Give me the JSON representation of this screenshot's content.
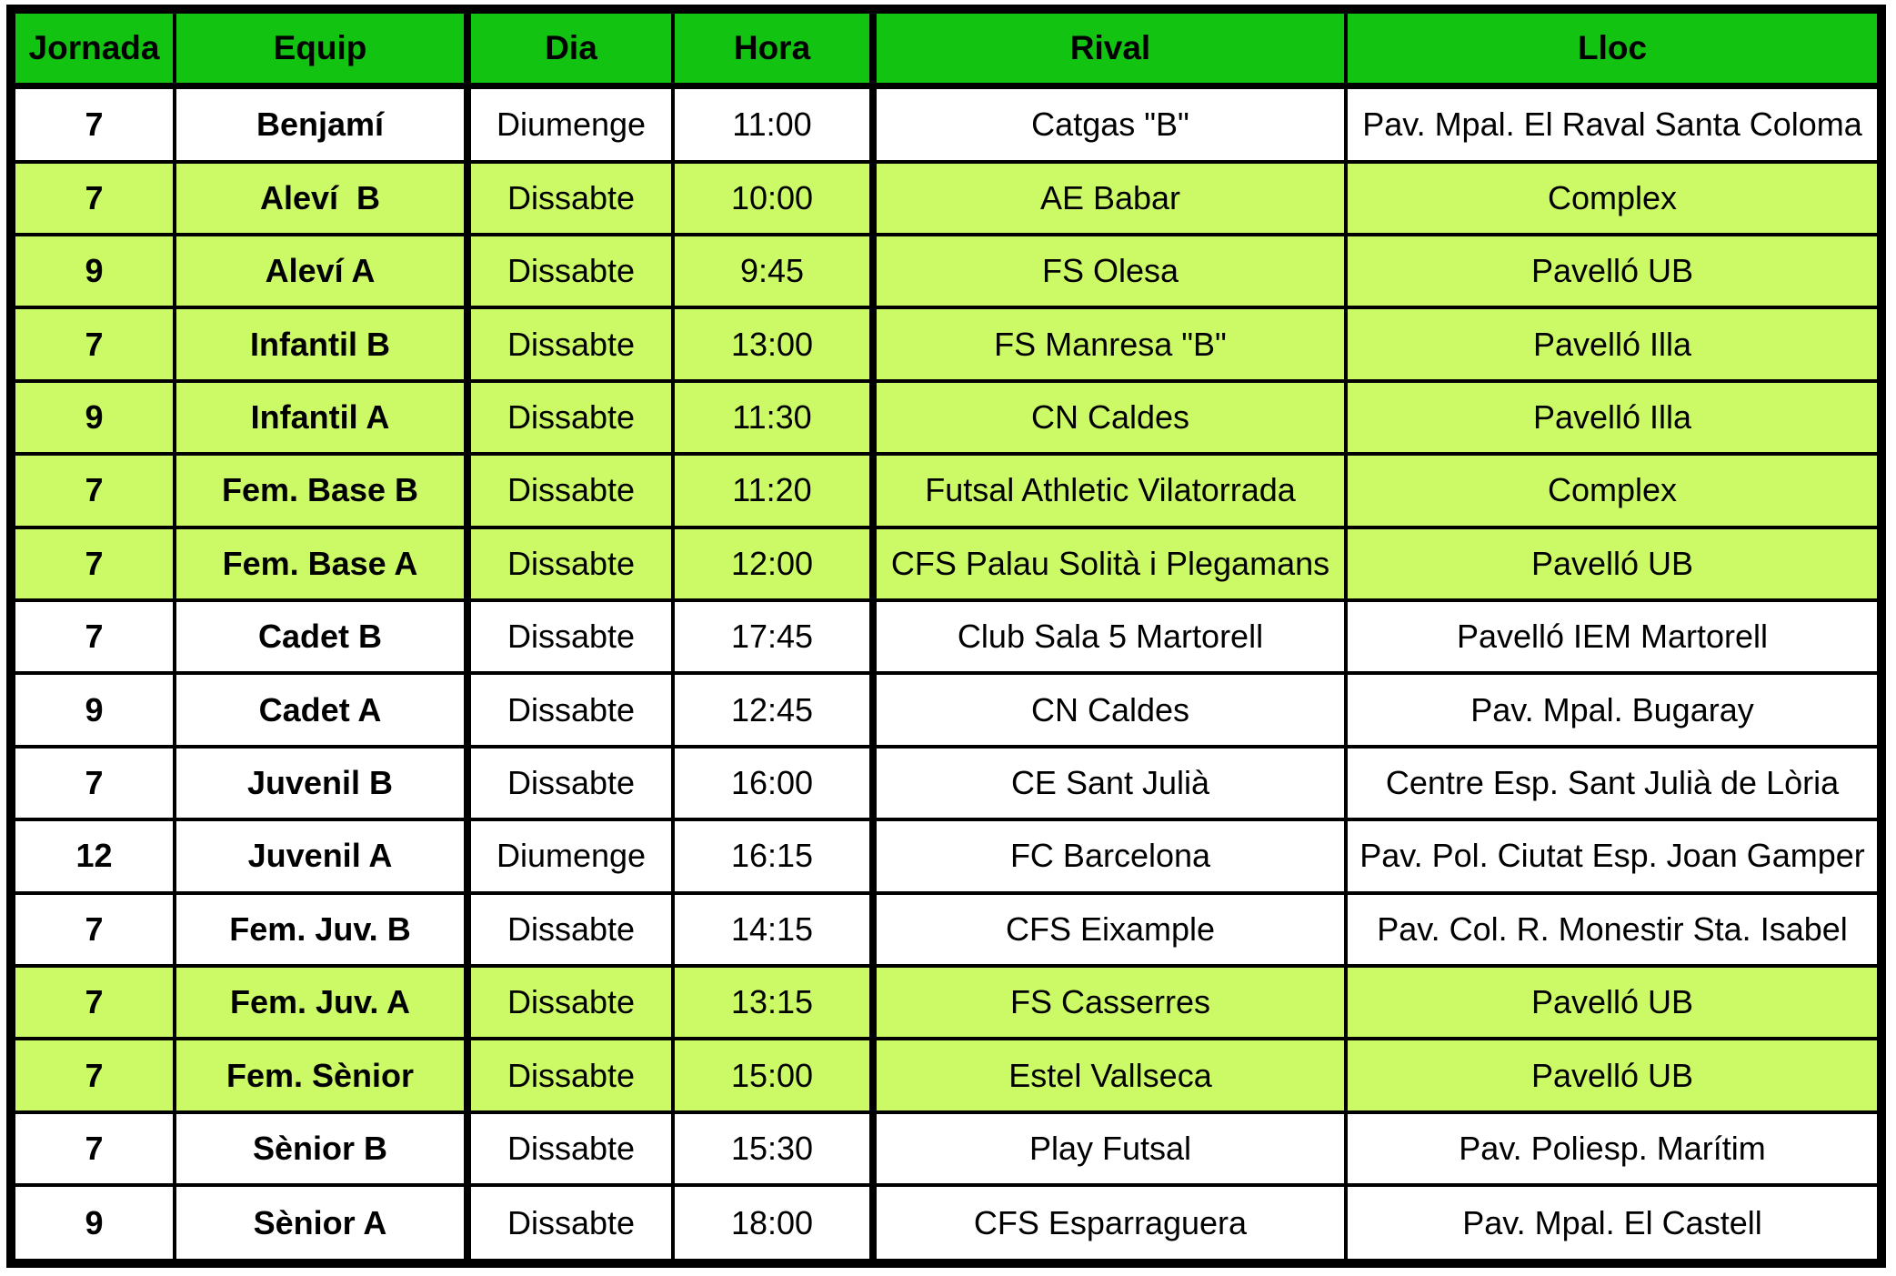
{
  "colors": {
    "header_bg": "#12c312",
    "highlight_bg": "#ccfa66",
    "row_bg": "#ffffff",
    "border": "#000000"
  },
  "table": {
    "columns": [
      "Jornada",
      "Equip",
      "Dia",
      "Hora",
      "Rival",
      "Lloc"
    ],
    "rows": [
      {
        "jornada": "7",
        "equip": "Benjamí",
        "dia": "Diumenge",
        "hora": "11:00",
        "rival": "Catgas \"B\"",
        "lloc": "Pav. Mpal. El Raval Santa Coloma",
        "highlight": false
      },
      {
        "jornada": "7",
        "equip": "Aleví  B",
        "dia": "Dissabte",
        "hora": "10:00",
        "rival": "AE Babar",
        "lloc": "Complex",
        "highlight": true
      },
      {
        "jornada": "9",
        "equip": "Aleví A",
        "dia": "Dissabte",
        "hora": "9:45",
        "rival": "FS Olesa",
        "lloc": "Pavelló UB",
        "highlight": true
      },
      {
        "jornada": "7",
        "equip": "Infantil B",
        "dia": "Dissabte",
        "hora": "13:00",
        "rival": "FS Manresa \"B\"",
        "lloc": "Pavelló Illa",
        "highlight": true
      },
      {
        "jornada": "9",
        "equip": "Infantil A",
        "dia": "Dissabte",
        "hora": "11:30",
        "rival": "CN Caldes",
        "lloc": "Pavelló Illa",
        "highlight": true
      },
      {
        "jornada": "7",
        "equip": "Fem. Base B",
        "dia": "Dissabte",
        "hora": "11:20",
        "rival": "Futsal Athletic Vilatorrada",
        "lloc": "Complex",
        "highlight": true
      },
      {
        "jornada": "7",
        "equip": "Fem. Base A",
        "dia": "Dissabte",
        "hora": "12:00",
        "rival": "CFS Palau Solità i Plegamans",
        "lloc": "Pavelló UB",
        "highlight": true
      },
      {
        "jornada": "7",
        "equip": "Cadet B",
        "dia": "Dissabte",
        "hora": "17:45",
        "rival": "Club Sala 5 Martorell",
        "lloc": "Pavelló IEM Martorell",
        "highlight": false
      },
      {
        "jornada": "9",
        "equip": "Cadet A",
        "dia": "Dissabte",
        "hora": "12:45",
        "rival": "CN Caldes",
        "lloc": "Pav. Mpal. Bugaray",
        "highlight": false
      },
      {
        "jornada": "7",
        "equip": "Juvenil B",
        "dia": "Dissabte",
        "hora": "16:00",
        "rival": "CE Sant Julià",
        "lloc": "Centre Esp. Sant Julià de Lòria",
        "highlight": false
      },
      {
        "jornada": "12",
        "equip": "Juvenil A",
        "dia": "Diumenge",
        "hora": "16:15",
        "rival": "FC Barcelona",
        "lloc": "Pav. Pol. Ciutat Esp. Joan Gamper",
        "highlight": false
      },
      {
        "jornada": "7",
        "equip": "Fem. Juv. B",
        "dia": "Dissabte",
        "hora": "14:15",
        "rival": "CFS Eixample",
        "lloc": "Pav. Col. R. Monestir Sta. Isabel",
        "highlight": false
      },
      {
        "jornada": "7",
        "equip": "Fem. Juv. A",
        "dia": "Dissabte",
        "hora": "13:15",
        "rival": "FS Casserres",
        "lloc": "Pavelló UB",
        "highlight": true
      },
      {
        "jornada": "7",
        "equip": "Fem. Sènior",
        "dia": "Dissabte",
        "hora": "15:00",
        "rival": "Estel Vallseca",
        "lloc": "Pavelló UB",
        "highlight": true
      },
      {
        "jornada": "7",
        "equip": "Sènior B",
        "dia": "Dissabte",
        "hora": "15:30",
        "rival": "Play Futsal",
        "lloc": "Pav. Poliesp. Marítim",
        "highlight": false
      },
      {
        "jornada": "9",
        "equip": "Sènior A",
        "dia": "Dissabte",
        "hora": "18:00",
        "rival": "CFS Esparraguera",
        "lloc": "Pav. Mpal. El Castell",
        "highlight": false
      }
    ]
  }
}
